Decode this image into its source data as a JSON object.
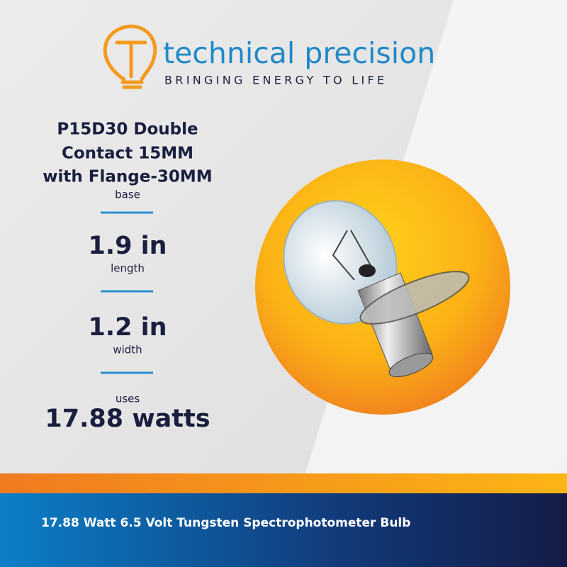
{
  "brand": {
    "name": "technical precision",
    "tagline": "BRINGING ENERGY TO LIFE"
  },
  "specs": {
    "base": {
      "value_lines": [
        "P15D30 Double",
        "Contact 15MM",
        "with Flange-30MM"
      ],
      "label": "base"
    },
    "length": {
      "value": "1.9 in",
      "label": "length"
    },
    "width": {
      "value": "1.2 in",
      "label": "width"
    },
    "power": {
      "label": "uses",
      "value": "17.88 watts"
    }
  },
  "footer": {
    "title": "17.88 Watt 6.5 Volt Tungsten Spectrophotometer Bulb"
  }
}
